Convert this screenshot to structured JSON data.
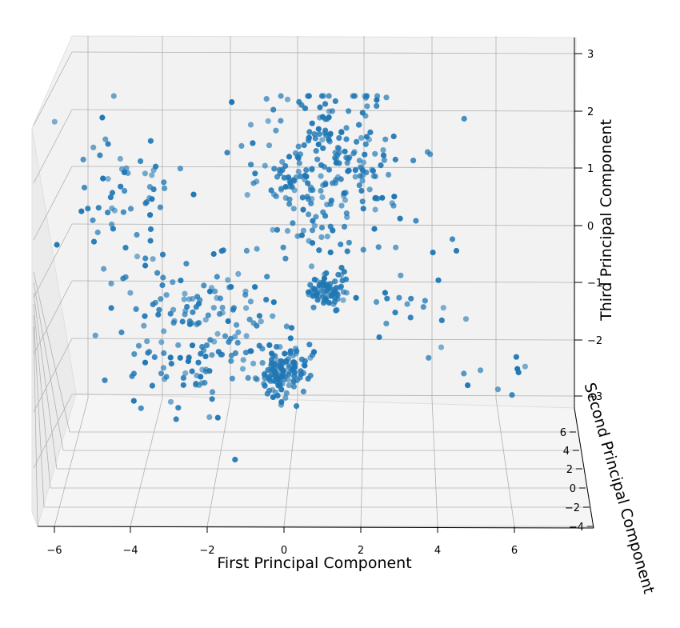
{
  "chart_data": {
    "type": "scatter",
    "title": "",
    "xlabel": "First Principal Component",
    "ylabel": "Second Principal Component",
    "zlabel": "Third Principal Component",
    "x_ticks": [
      "−6",
      "−4",
      "−2",
      "0",
      "2",
      "4",
      "6"
    ],
    "y_ticks": [
      "−4",
      "−2",
      "0",
      "2",
      "4",
      "6"
    ],
    "z_ticks": [
      "−3",
      "−2",
      "−1",
      "0",
      "1",
      "2",
      "3"
    ],
    "xlim": [
      -6.5,
      8
    ],
    "ylim": [
      -4,
      7
    ],
    "zlim": [
      -3.2,
      3.2
    ],
    "grid": true,
    "marker_color": "#1f77b4",
    "pane_color": "#f2f2f2",
    "grid_color": "#b0b0b0",
    "clusters": [
      {
        "center": [
          1.2,
          1.0
        ],
        "spread": [
          1.0,
          0.8
        ],
        "count": 260
      },
      {
        "center": [
          0.0,
          -2.55
        ],
        "spread": [
          0.35,
          0.25
        ],
        "count": 120
      },
      {
        "center": [
          1.1,
          -1.15
        ],
        "spread": [
          0.25,
          0.15
        ],
        "count": 70
      },
      {
        "center": [
          -2.2,
          -1.8
        ],
        "spread": [
          1.0,
          0.7
        ],
        "count": 170
      },
      {
        "center": [
          -4.2,
          0.6
        ],
        "spread": [
          0.9,
          0.8
        ],
        "count": 60
      },
      {
        "center": [
          3.5,
          -1.5
        ],
        "spread": [
          1.1,
          0.6
        ],
        "count": 25
      },
      {
        "center": [
          5.8,
          -2.6
        ],
        "spread": [
          0.5,
          0.3
        ],
        "count": 8
      }
    ]
  }
}
